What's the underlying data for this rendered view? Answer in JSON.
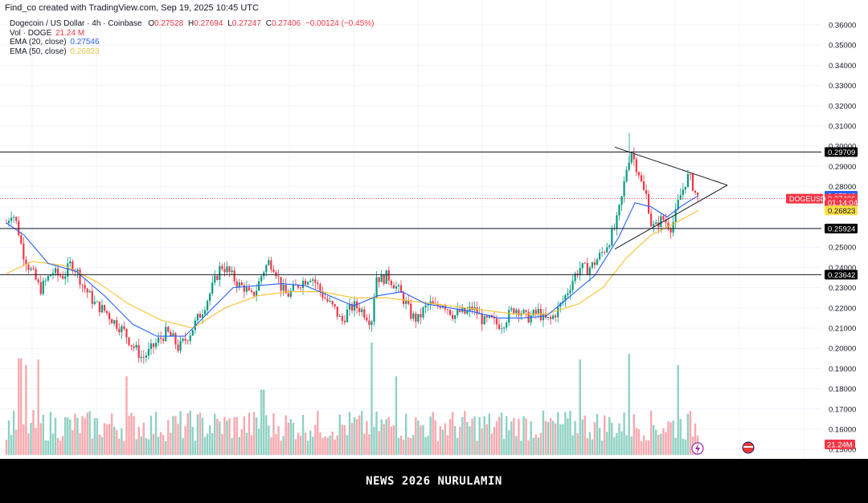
{
  "header": {
    "credit": "Find_co created with TradingView.com, Sep 19, 2025 10:45 UTC"
  },
  "legend": {
    "symbol": "Dogecoin / US Dollar · 4h · Coinbase",
    "ohlc": {
      "o_label": "O",
      "o": "0.27528",
      "h_label": "H",
      "h": "0.27694",
      "l_label": "L",
      "l": "0.27247",
      "c_label": "C",
      "c": "0.27406",
      "change": "−0.00124 (−0.45%)"
    },
    "vol_label": "Vol · DOGE",
    "vol_value": "21.24 M",
    "ema20_label": "EMA (20, close)",
    "ema20_value": "0.27546",
    "ema50_label": "EMA (50, close)",
    "ema50_value": "0.26823"
  },
  "price_axis": {
    "ticks": [
      "0.36000",
      "0.35000",
      "0.34000",
      "0.33000",
      "0.32000",
      "0.31000",
      "0.30000",
      "0.29000",
      "0.28000",
      "0.27000",
      "0.26000",
      "0.25000",
      "0.24000",
      "0.23000",
      "0.22000",
      "0.21000",
      "0.20000",
      "0.19000",
      "0.18000",
      "0.17000",
      "0.16000",
      "0.15000"
    ],
    "tick_values": [
      0.36,
      0.35,
      0.34,
      0.33,
      0.32,
      0.31,
      0.3,
      0.29,
      0.28,
      0.27,
      0.26,
      0.25,
      0.24,
      0.23,
      0.22,
      0.21,
      0.2,
      0.19,
      0.18,
      0.17,
      0.16,
      0.15
    ],
    "badges": [
      {
        "text": "0.29709",
        "value": 0.29709,
        "bg": "#000000",
        "fg": "#ffffff"
      },
      {
        "text": "0.27546",
        "value": 0.27546,
        "bg": "#2962ff",
        "fg": "#ffffff"
      },
      {
        "text": "0.27406",
        "value": 0.27406,
        "bg": "#f23645",
        "fg": "#ffffff"
      },
      {
        "text": "01:14:04",
        "value": 0.27205,
        "bg": "#f23645",
        "fg": "#ffffff"
      },
      {
        "text": "0.26823",
        "value": 0.26823,
        "bg": "#fde047",
        "fg": "#131722"
      },
      {
        "text": "0.25924",
        "value": 0.25924,
        "bg": "#000000",
        "fg": "#ffffff"
      },
      {
        "text": "0.23642",
        "value": 0.23642,
        "bg": "#000000",
        "fg": "#ffffff"
      }
    ],
    "symbol_tag": "DOGEUSD",
    "volume_badge": "21.24M"
  },
  "chart_data": {
    "type": "candlestick",
    "title": "Dogecoin / US Dollar · 4h · Coinbase",
    "ylim": [
      0.15,
      0.365
    ],
    "grid": true,
    "up_color": "#089981",
    "down_color": "#f23645",
    "ema20_color": "#2962ff",
    "ema50_color": "#fbc02d",
    "horizontal_levels": [
      0.29709,
      0.25924,
      0.23642
    ],
    "current_price": 0.27406,
    "triangle": {
      "upper": [
        [
          765,
          0.2995
        ],
        [
          905,
          0.2807
        ]
      ],
      "lower": [
        [
          765,
          0.2491
        ],
        [
          905,
          0.2807
        ]
      ]
    },
    "close_points": [
      [
        8,
        0.262
      ],
      [
        15,
        0.268
      ],
      [
        22,
        0.26
      ],
      [
        28,
        0.248
      ],
      [
        35,
        0.241
      ],
      [
        42,
        0.236
      ],
      [
        50,
        0.229
      ],
      [
        57,
        0.233
      ],
      [
        65,
        0.238
      ],
      [
        72,
        0.236
      ],
      [
        80,
        0.236
      ],
      [
        88,
        0.242
      ],
      [
        95,
        0.239
      ],
      [
        102,
        0.232
      ],
      [
        110,
        0.227
      ],
      [
        118,
        0.222
      ],
      [
        125,
        0.22
      ],
      [
        132,
        0.218
      ],
      [
        140,
        0.214
      ],
      [
        148,
        0.211
      ],
      [
        155,
        0.208
      ],
      [
        162,
        0.203
      ],
      [
        170,
        0.199
      ],
      [
        177,
        0.195
      ],
      [
        185,
        0.198
      ],
      [
        193,
        0.202
      ],
      [
        200,
        0.205
      ],
      [
        207,
        0.208
      ],
      [
        215,
        0.205
      ],
      [
        222,
        0.2
      ],
      [
        230,
        0.204
      ],
      [
        237,
        0.208
      ],
      [
        245,
        0.214
      ],
      [
        252,
        0.219
      ],
      [
        260,
        0.226
      ],
      [
        267,
        0.233
      ],
      [
        275,
        0.241
      ],
      [
        282,
        0.239
      ],
      [
        290,
        0.235
      ],
      [
        298,
        0.231
      ],
      [
        305,
        0.23
      ],
      [
        312,
        0.225
      ],
      [
        320,
        0.23
      ],
      [
        327,
        0.238
      ],
      [
        335,
        0.243
      ],
      [
        342,
        0.24
      ],
      [
        350,
        0.23
      ],
      [
        357,
        0.226
      ],
      [
        365,
        0.229
      ],
      [
        372,
        0.232
      ],
      [
        380,
        0.234
      ],
      [
        387,
        0.236
      ],
      [
        395,
        0.231
      ],
      [
        402,
        0.226
      ],
      [
        410,
        0.222
      ],
      [
        417,
        0.219
      ],
      [
        425,
        0.213
      ],
      [
        432,
        0.218
      ],
      [
        440,
        0.221
      ],
      [
        447,
        0.22
      ],
      [
        455,
        0.217
      ],
      [
        462,
        0.213
      ],
      [
        468,
        0.236
      ],
      [
        475,
        0.234
      ],
      [
        482,
        0.236
      ],
      [
        490,
        0.232
      ],
      [
        497,
        0.228
      ],
      [
        505,
        0.222
      ],
      [
        512,
        0.216
      ],
      [
        520,
        0.214
      ],
      [
        527,
        0.219
      ],
      [
        535,
        0.222
      ],
      [
        542,
        0.22
      ],
      [
        550,
        0.223
      ],
      [
        557,
        0.22
      ],
      [
        565,
        0.216
      ],
      [
        572,
        0.218
      ],
      [
        580,
        0.217
      ],
      [
        587,
        0.22
      ],
      [
        595,
        0.217
      ],
      [
        602,
        0.213
      ],
      [
        610,
        0.214
      ],
      [
        617,
        0.212
      ],
      [
        625,
        0.212
      ],
      [
        632,
        0.216
      ],
      [
        640,
        0.22
      ],
      [
        647,
        0.219
      ],
      [
        655,
        0.215
      ],
      [
        662,
        0.216
      ],
      [
        670,
        0.218
      ],
      [
        677,
        0.214
      ],
      [
        685,
        0.214
      ],
      [
        692,
        0.218
      ],
      [
        700,
        0.223
      ],
      [
        707,
        0.229
      ],
      [
        715,
        0.236
      ],
      [
        722,
        0.24
      ],
      [
        730,
        0.239
      ],
      [
        737,
        0.241
      ],
      [
        745,
        0.245
      ],
      [
        752,
        0.249
      ],
      [
        760,
        0.255
      ],
      [
        767,
        0.262
      ],
      [
        774,
        0.275
      ],
      [
        780,
        0.29
      ],
      [
        785,
        0.298
      ],
      [
        790,
        0.292
      ],
      [
        795,
        0.287
      ],
      [
        800,
        0.278
      ],
      [
        805,
        0.275
      ],
      [
        810,
        0.262
      ],
      [
        815,
        0.259
      ],
      [
        820,
        0.263
      ],
      [
        825,
        0.264
      ],
      [
        830,
        0.262
      ],
      [
        835,
        0.26
      ],
      [
        840,
        0.265
      ],
      [
        845,
        0.274
      ],
      [
        850,
        0.279
      ],
      [
        855,
        0.285
      ],
      [
        860,
        0.283
      ],
      [
        865,
        0.277
      ],
      [
        869,
        0.274
      ]
    ],
    "ema20_points": [
      [
        8,
        0.262
      ],
      [
        30,
        0.256
      ],
      [
        60,
        0.242
      ],
      [
        95,
        0.238
      ],
      [
        130,
        0.226
      ],
      [
        165,
        0.212
      ],
      [
        195,
        0.206
      ],
      [
        230,
        0.206
      ],
      [
        260,
        0.218
      ],
      [
        290,
        0.23
      ],
      [
        320,
        0.231
      ],
      [
        350,
        0.232
      ],
      [
        380,
        0.231
      ],
      [
        410,
        0.226
      ],
      [
        440,
        0.221
      ],
      [
        470,
        0.226
      ],
      [
        500,
        0.228
      ],
      [
        530,
        0.222
      ],
      [
        560,
        0.22
      ],
      [
        590,
        0.218
      ],
      [
        620,
        0.215
      ],
      [
        650,
        0.215
      ],
      [
        680,
        0.216
      ],
      [
        710,
        0.226
      ],
      [
        740,
        0.236
      ],
      [
        770,
        0.255
      ],
      [
        790,
        0.272
      ],
      [
        810,
        0.27
      ],
      [
        830,
        0.265
      ],
      [
        850,
        0.271
      ],
      [
        869,
        0.2755
      ]
    ],
    "ema50_points": [
      [
        8,
        0.237
      ],
      [
        40,
        0.243
      ],
      [
        80,
        0.241
      ],
      [
        120,
        0.233
      ],
      [
        160,
        0.222
      ],
      [
        200,
        0.214
      ],
      [
        240,
        0.21
      ],
      [
        280,
        0.22
      ],
      [
        320,
        0.226
      ],
      [
        360,
        0.228
      ],
      [
        400,
        0.228
      ],
      [
        440,
        0.225
      ],
      [
        480,
        0.225
      ],
      [
        520,
        0.223
      ],
      [
        560,
        0.221
      ],
      [
        600,
        0.219
      ],
      [
        640,
        0.217
      ],
      [
        680,
        0.217
      ],
      [
        720,
        0.222
      ],
      [
        750,
        0.23
      ],
      [
        780,
        0.245
      ],
      [
        810,
        0.256
      ],
      [
        840,
        0.262
      ],
      [
        869,
        0.2682
      ]
    ],
    "volume_spikes": [
      [
        25,
        0.86
      ],
      [
        33,
        0.8
      ],
      [
        47,
        0.85
      ],
      [
        158,
        0.7
      ],
      [
        327,
        0.58
      ],
      [
        463,
        1.0
      ],
      [
        494,
        0.7
      ],
      [
        722,
        0.85
      ],
      [
        782,
        0.9
      ],
      [
        843,
        0.8
      ]
    ]
  },
  "footer": {
    "text": "NEWS 2026 NURULAMIN"
  }
}
